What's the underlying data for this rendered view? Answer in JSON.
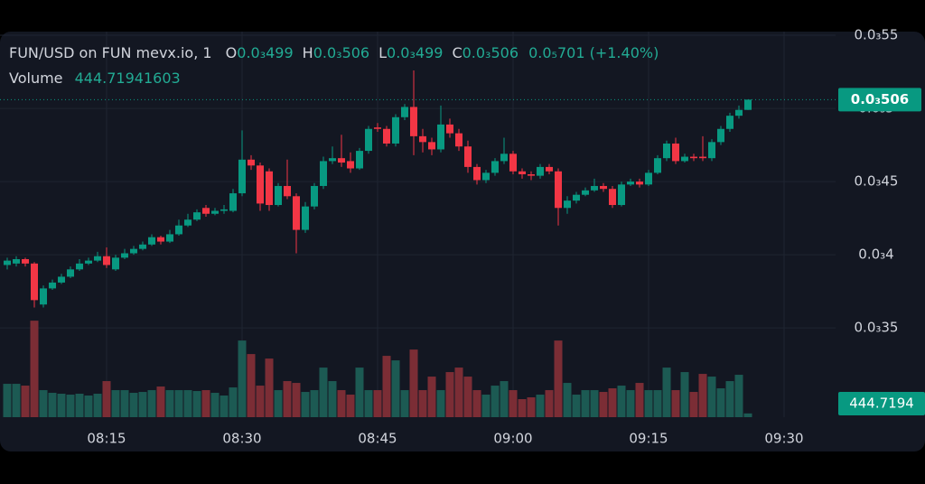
{
  "chart_data": {
    "type": "candlestick",
    "header": {
      "symbol": "FUN/USD on FUN mevx.io, 1",
      "ohlc": [
        {
          "label": "O",
          "value": "0.0₃499"
        },
        {
          "label": "H",
          "value": "0.0₃506"
        },
        {
          "label": "L",
          "value": "0.0₃499"
        },
        {
          "label": "C",
          "value": "0.0₃506"
        }
      ],
      "change": "0.0₅701 (+1.40%)",
      "volume_title": "Volume"
    },
    "last_price_label": "0.0₃506",
    "last_volume_label": "444.7194",
    "up_color": "#089981",
    "down_color": "#f23645",
    "up_volume_color": "#1c5a53",
    "down_volume_color": "#7b2d35",
    "grid": true,
    "xlim": [
      "08:04",
      "09:35"
    ],
    "xticks": [
      "08:15",
      "08:30",
      "08:45",
      "09:00",
      "09:15",
      "09:30"
    ],
    "ylim": [
      0.000289,
      0.0005525
    ],
    "yticks": [
      {
        "value": 0.00035,
        "label": "0.0₃35"
      },
      {
        "value": 0.0004,
        "label": "0.0₃4"
      },
      {
        "value": 0.00045,
        "label": "0.0₃45"
      },
      {
        "value": 0.0005,
        "label": "0.0₃5"
      },
      {
        "value": 0.00055,
        "label": "0.0₃55"
      }
    ],
    "volume_ylim": [
      0,
      12000
    ],
    "x": [
      "08:04",
      "08:05",
      "08:06",
      "08:07",
      "08:08",
      "08:09",
      "08:10",
      "08:11",
      "08:12",
      "08:13",
      "08:14",
      "08:15",
      "08:16",
      "08:17",
      "08:18",
      "08:19",
      "08:20",
      "08:21",
      "08:22",
      "08:23",
      "08:24",
      "08:25",
      "08:26",
      "08:27",
      "08:28",
      "08:29",
      "08:30",
      "08:31",
      "08:32",
      "08:33",
      "08:34",
      "08:35",
      "08:36",
      "08:37",
      "08:38",
      "08:39",
      "08:40",
      "08:41",
      "08:42",
      "08:43",
      "08:44",
      "08:45",
      "08:46",
      "08:47",
      "08:48",
      "08:49",
      "08:50",
      "08:51",
      "08:52",
      "08:53",
      "08:54",
      "08:55",
      "08:56",
      "08:57",
      "08:58",
      "08:59",
      "09:00",
      "09:01",
      "09:02",
      "09:03",
      "09:04",
      "09:05",
      "09:06",
      "09:07",
      "09:08",
      "09:09",
      "09:10",
      "09:11",
      "09:12",
      "09:13",
      "09:14",
      "09:15",
      "09:16",
      "09:17",
      "09:18",
      "09:19",
      "09:20",
      "09:21",
      "09:22",
      "09:23",
      "09:24",
      "09:25",
      "09:26"
    ],
    "open": [
      0.000393,
      0.000394,
      0.000397,
      0.000394,
      0.000366,
      0.000377,
      0.000381,
      0.000385,
      0.00039,
      0.000394,
      0.000396,
      0.000399,
      0.00039,
      0.000398,
      0.000401,
      0.000404,
      0.000407,
      0.000412,
      0.000409,
      0.000414,
      0.00042,
      0.000424,
      0.000432,
      0.000428,
      0.00043,
      0.00043,
      0.000442,
      0.000465,
      0.000461,
      0.000457,
      0.000434,
      0.000447,
      0.00044,
      0.000417,
      0.000433,
      0.000447,
      0.000464,
      0.000466,
      0.000464,
      0.000459,
      0.000471,
      0.000487,
      0.000486,
      0.000476,
      0.000494,
      0.000501,
      0.000481,
      0.000477,
      0.000472,
      0.000489,
      0.000483,
      0.000474,
      0.00046,
      0.000451,
      0.000456,
      0.000464,
      0.000469,
      0.000457,
      0.000455,
      0.000454,
      0.00046,
      0.000457,
      0.000432,
      0.000437,
      0.000441,
      0.000444,
      0.000447,
      0.000445,
      0.000434,
      0.000448,
      0.00045,
      0.000448,
      0.000456,
      0.000466,
      0.000476,
      0.000464,
      0.000467,
      0.000467,
      0.000466,
      0.000477,
      0.000486,
      0.000495,
      0.000499
    ],
    "high": [
      0.000398,
      0.000399,
      0.000398,
      0.000395,
      0.000379,
      0.000383,
      0.000387,
      0.000392,
      0.000397,
      0.000398,
      0.000402,
      0.000405,
      0.0004,
      0.000404,
      0.000406,
      0.000409,
      0.000414,
      0.000413,
      0.000417,
      0.000424,
      0.000428,
      0.000431,
      0.000434,
      0.000432,
      0.000434,
      0.000445,
      0.000485,
      0.000468,
      0.000463,
      0.000459,
      0.000449,
      0.000465,
      0.000442,
      0.000436,
      0.000449,
      0.000467,
      0.000474,
      0.000482,
      0.00047,
      0.000473,
      0.000488,
      0.00049,
      0.000488,
      0.000496,
      0.000503,
      0.000526,
      0.000486,
      0.00048,
      0.000502,
      0.000493,
      0.000486,
      0.000478,
      0.000462,
      0.000458,
      0.000466,
      0.00048,
      0.000471,
      0.000459,
      0.000457,
      0.000462,
      0.000462,
      0.000459,
      0.00044,
      0.000443,
      0.000446,
      0.000452,
      0.000449,
      0.000447,
      0.00045,
      0.000452,
      0.000452,
      0.000458,
      0.000468,
      0.000478,
      0.00048,
      0.000469,
      0.000469,
      0.000481,
      0.000479,
      0.000488,
      0.000497,
      0.000502,
      0.000506
    ],
    "low": [
      0.00039,
      0.000392,
      0.000392,
      0.000364,
      0.000364,
      0.000376,
      0.00038,
      0.000384,
      0.000389,
      0.000393,
      0.000395,
      0.000391,
      0.000389,
      0.000397,
      0.0004,
      0.000403,
      0.000406,
      0.000407,
      0.000408,
      0.000413,
      0.000419,
      0.000423,
      0.000426,
      0.000427,
      0.000428,
      0.000429,
      0.00044,
      0.000458,
      0.00043,
      0.00043,
      0.000433,
      0.000438,
      0.000401,
      0.000415,
      0.000431,
      0.000445,
      0.000462,
      0.00046,
      0.000456,
      0.000458,
      0.000469,
      0.000484,
      0.000474,
      0.000474,
      0.000492,
      0.000468,
      0.00047,
      0.000468,
      0.00047,
      0.00048,
      0.000471,
      0.000456,
      0.000448,
      0.000449,
      0.000454,
      0.000462,
      0.000455,
      0.000452,
      0.000451,
      0.000452,
      0.000455,
      0.00042,
      0.000428,
      0.000435,
      0.00044,
      0.000443,
      0.000443,
      0.000432,
      0.000433,
      0.000447,
      0.000446,
      0.000447,
      0.000455,
      0.000464,
      0.000462,
      0.000463,
      0.000464,
      0.000464,
      0.000464,
      0.000475,
      0.000484,
      0.000493,
      0.000499
    ],
    "close": [
      0.000396,
      0.000397,
      0.000394,
      0.000369,
      0.000377,
      0.000381,
      0.000385,
      0.00039,
      0.000394,
      0.000396,
      0.000399,
      0.000393,
      0.000398,
      0.000401,
      0.000404,
      0.000407,
      0.000412,
      0.000409,
      0.000414,
      0.00042,
      0.000424,
      0.000429,
      0.000428,
      0.00043,
      0.000431,
      0.000442,
      0.000465,
      0.000461,
      0.000435,
      0.000434,
      0.000447,
      0.00044,
      0.000417,
      0.000433,
      0.000447,
      0.000464,
      0.000466,
      0.000463,
      0.000459,
      0.000471,
      0.000486,
      0.000486,
      0.000476,
      0.000494,
      0.000501,
      0.000481,
      0.000477,
      0.000472,
      0.000489,
      0.000483,
      0.000474,
      0.00046,
      0.000451,
      0.000456,
      0.000464,
      0.000469,
      0.000457,
      0.000455,
      0.000454,
      0.00046,
      0.000457,
      0.000432,
      0.000437,
      0.000441,
      0.000444,
      0.000447,
      0.000445,
      0.000434,
      0.000448,
      0.00045,
      0.000448,
      0.000456,
      0.000466,
      0.000476,
      0.000464,
      0.000467,
      0.000466,
      0.000466,
      0.000477,
      0.000486,
      0.000495,
      0.000499,
      0.000506
    ],
    "volume": [
      3959,
      3959,
      3745,
      11449,
      3210,
      2889,
      2782,
      2675,
      2782,
      2568,
      2782,
      4280,
      3210,
      3210,
      2889,
      2996,
      3210,
      3638,
      3210,
      3210,
      3210,
      3103,
      3210,
      2889,
      2568,
      3531,
      9095,
      7490,
      3745,
      6955,
      3210,
      4280,
      4066,
      2996,
      3210,
      5885,
      4280,
      3210,
      2675,
      5885,
      3210,
      3210,
      7276,
      6741,
      3210,
      8025,
      3210,
      4815,
      3210,
      5350,
      5885,
      4815,
      3210,
      2675,
      3745,
      4280,
      3210,
      2140,
      2354,
      2675,
      3210,
      9095,
      4066,
      2675,
      3210,
      3210,
      2996,
      3424,
      3745,
      3210,
      4066,
      3210,
      3210,
      5885,
      3210,
      5350,
      2996,
      5136,
      4815,
      3424,
      4280,
      5029,
      444.71941603
    ]
  }
}
